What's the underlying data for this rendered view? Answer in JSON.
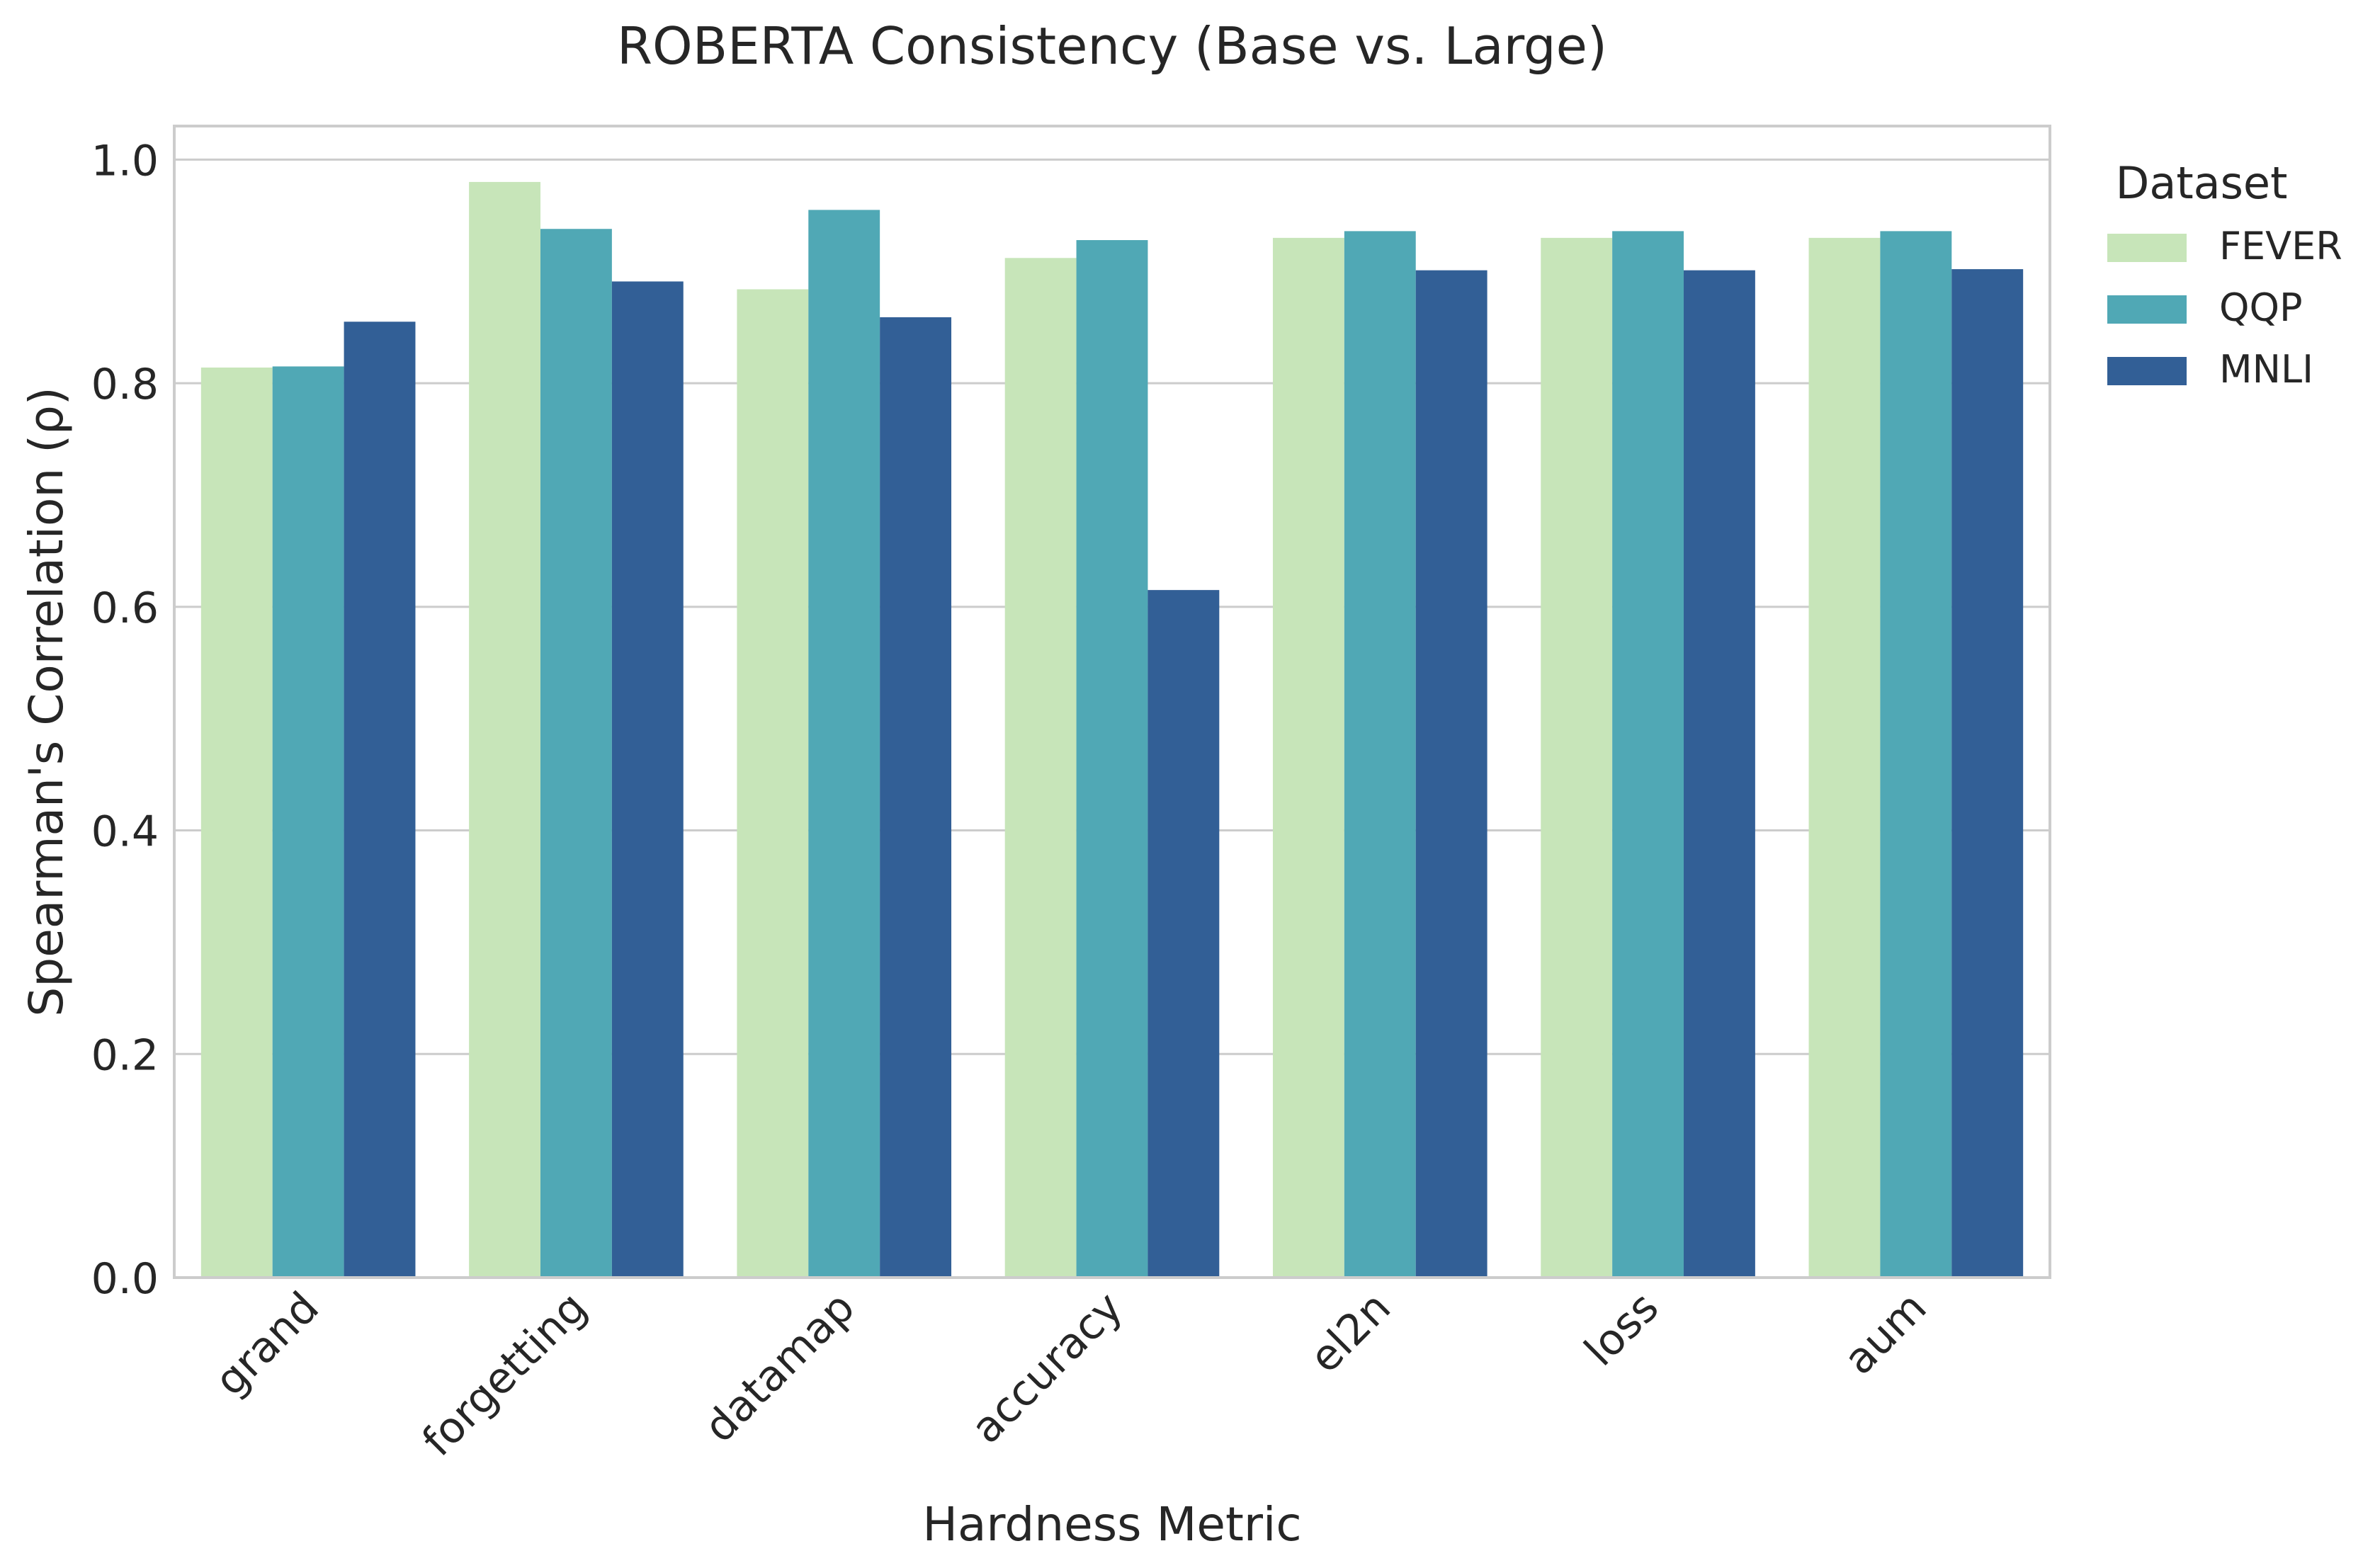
{
  "chart_data": {
    "type": "bar",
    "title": "ROBERTA Consistency (Base vs. Large)",
    "xlabel": "Hardness Metric",
    "ylabel": "Spearman's Correlation (ρ)",
    "ylim": [
      0,
      1.03
    ],
    "yticks": [
      "0.0",
      "0.2",
      "0.4",
      "0.6",
      "0.8",
      "1.0"
    ],
    "grid": "horizontal",
    "legend_placement": "outside-right",
    "legend_title": "Dataset",
    "categories": [
      "grand",
      "forgetting",
      "datamap",
      "accuracy",
      "el2n",
      "loss",
      "aum"
    ],
    "series": [
      {
        "name": "FEVER",
        "color": "#c7e5b9",
        "values": [
          0.814,
          0.98,
          0.884,
          0.912,
          0.93,
          0.93,
          0.93
        ]
      },
      {
        "name": "QQP",
        "color": "#50a8b5",
        "values": [
          0.815,
          0.938,
          0.955,
          0.928,
          0.936,
          0.936,
          0.936
        ]
      },
      {
        "name": "MNLI",
        "color": "#325f96",
        "values": [
          0.855,
          0.891,
          0.859,
          0.615,
          0.901,
          0.901,
          0.902
        ]
      }
    ]
  }
}
